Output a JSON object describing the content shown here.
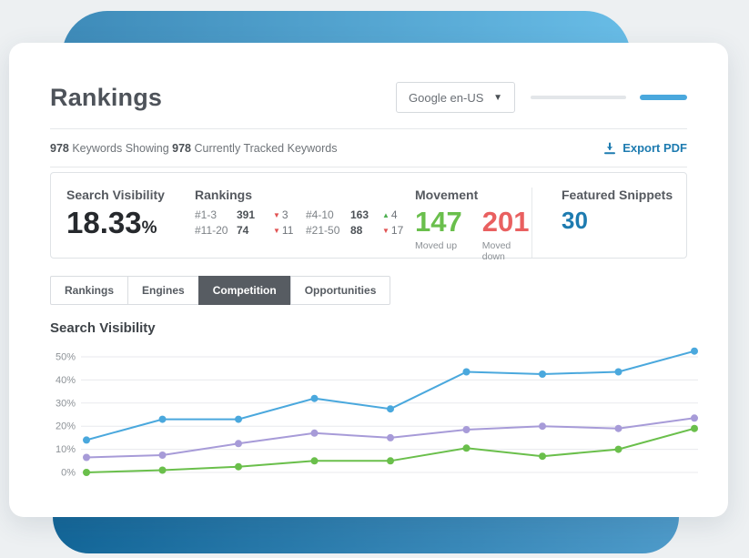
{
  "header": {
    "title": "Rankings",
    "engine_dropdown": {
      "value": "Google en-US"
    }
  },
  "subheader": {
    "keywords_count": "978",
    "keywords_label": "Keywords Showing",
    "tracked_count": "978",
    "tracked_label": "Currently Tracked Keywords",
    "export_label": "Export PDF"
  },
  "stats": {
    "search_visibility": {
      "label": "Search Visibility",
      "value": "18.33",
      "unit": "%"
    },
    "rankings": {
      "label": "Rankings",
      "entries": [
        {
          "range": "#1-3",
          "value": "391",
          "direction": "down",
          "change": "3"
        },
        {
          "range": "#4-10",
          "value": "163",
          "direction": "up",
          "change": "4"
        },
        {
          "range": "#11-20",
          "value": "74",
          "direction": "down",
          "change": "11"
        },
        {
          "range": "#21-50",
          "value": "88",
          "direction": "down",
          "change": "17"
        }
      ]
    },
    "movement": {
      "label": "Movement",
      "moved_up": {
        "value": "147",
        "label": "Moved up",
        "color": "#6abf4c"
      },
      "moved_down": {
        "value": "201",
        "label": "Moved down",
        "color": "#e96060"
      }
    },
    "featured_snippets": {
      "label": "Featured Snippets",
      "value": "30",
      "color": "#1d7bb0"
    }
  },
  "tabs": [
    {
      "label": "Rankings",
      "active": false
    },
    {
      "label": "Engines",
      "active": false
    },
    {
      "label": "Competition",
      "active": true
    },
    {
      "label": "Opportunities",
      "active": false
    }
  ],
  "chart_data": {
    "type": "line",
    "title": "Search Visibility",
    "x": [
      1,
      2,
      3,
      4,
      5,
      6,
      7,
      8,
      9
    ],
    "xlabel": "",
    "ylabel": "",
    "ylim": [
      0,
      55
    ],
    "yticks": [
      0,
      10,
      20,
      30,
      40,
      50
    ],
    "ytick_suffix": "%",
    "grid": true,
    "legend": "none",
    "series": [
      {
        "name": "series-1",
        "color": "#4aa8dd",
        "values": [
          14,
          23,
          23,
          32,
          27.5,
          43.5,
          42.5,
          43.5,
          52.5
        ]
      },
      {
        "name": "series-2",
        "color": "#a79bd8",
        "values": [
          6.5,
          7.5,
          12.5,
          17,
          15,
          18.5,
          20,
          19,
          23.5
        ]
      },
      {
        "name": "series-3",
        "color": "#6abf4b",
        "values": [
          0,
          1,
          2.5,
          5,
          5,
          10.5,
          7,
          10,
          19
        ]
      }
    ]
  },
  "colors": {
    "accent_blue": "#4aa8dd",
    "export_blue": "#1d7bb0",
    "positive_green": "#6abf4c",
    "negative_red": "#e96060",
    "active_tab_bg": "#575c62"
  }
}
